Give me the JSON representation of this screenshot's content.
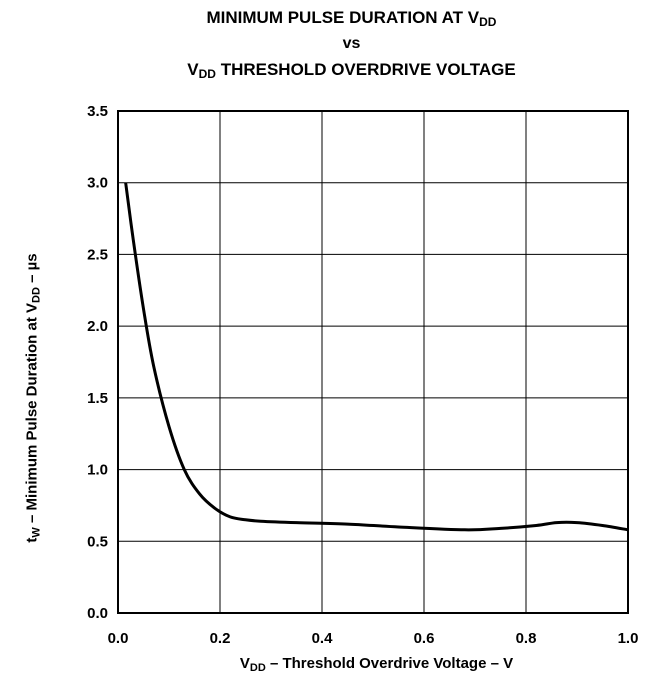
{
  "chart_data": {
    "type": "line",
    "title": {
      "line1_main": "MINIMUM PULSE DURATION AT V",
      "line1_sub": "DD",
      "line2": "vs",
      "line3_pre": "V",
      "line3_sub": "DD",
      "line3_rest": " THRESHOLD OVERDRIVE VOLTAGE"
    },
    "xlabel": {
      "pre": "V",
      "sub": "DD",
      "rest": " – Threshold Overdrive Voltage – V"
    },
    "ylabel": {
      "pre": "t",
      "sub": "W",
      "mid": " – Minimum Pulse Duration at V",
      "sub2": "DD",
      "rest": " – µs"
    },
    "xlim": [
      0.0,
      1.0
    ],
    "ylim": [
      0.0,
      3.5
    ],
    "x_ticks": [
      "0.0",
      "0.2",
      "0.4",
      "0.6",
      "0.8",
      "1.0"
    ],
    "y_ticks": [
      "0.0",
      "0.5",
      "1.0",
      "1.5",
      "2.0",
      "2.5",
      "3.0",
      "3.5"
    ],
    "grid": true,
    "series": [
      {
        "color": "#000000",
        "x": [
          0.015,
          0.03,
          0.05,
          0.07,
          0.1,
          0.13,
          0.16,
          0.19,
          0.22,
          0.25,
          0.28,
          0.35,
          0.45,
          0.55,
          0.68,
          0.75,
          0.82,
          0.86,
          0.9,
          0.95,
          1.0
        ],
        "y": [
          3.0,
          2.6,
          2.12,
          1.72,
          1.3,
          1.0,
          0.83,
          0.73,
          0.67,
          0.65,
          0.64,
          0.63,
          0.62,
          0.6,
          0.58,
          0.59,
          0.61,
          0.63,
          0.63,
          0.61,
          0.58
        ]
      }
    ]
  }
}
